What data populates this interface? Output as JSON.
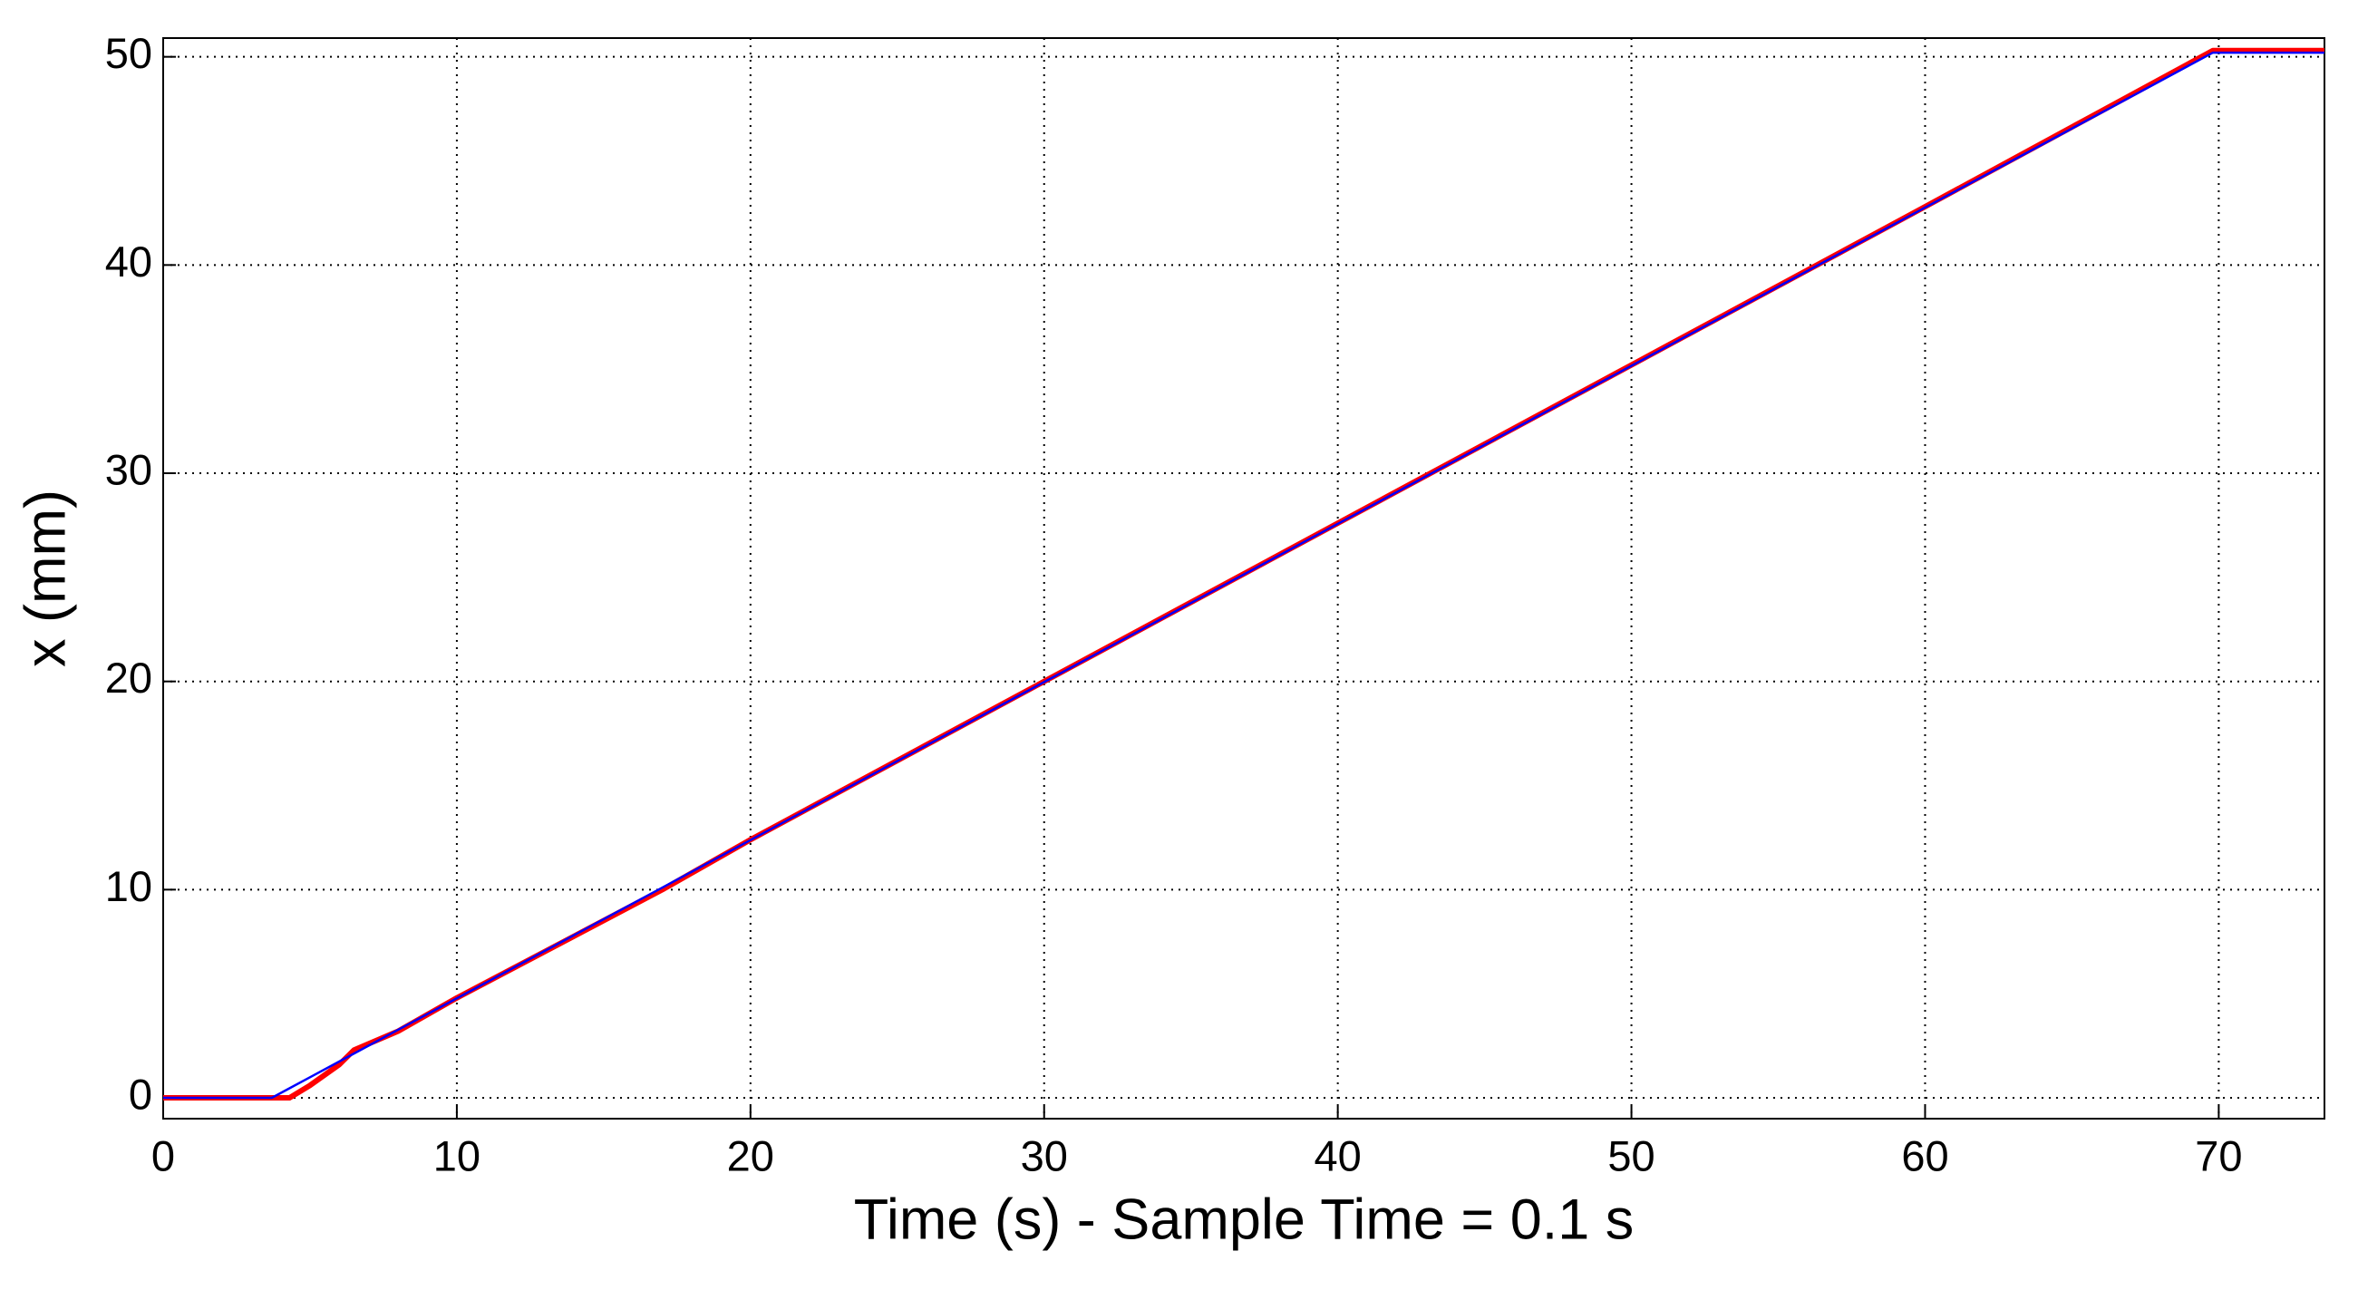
{
  "chart_data": {
    "type": "line",
    "xlabel": "Time (s) - Sample Time = 0.1 s",
    "ylabel": "x (mm)",
    "x": [
      0,
      3.7,
      4.3,
      5,
      6,
      6.5,
      8,
      10,
      17,
      18,
      20,
      30,
      40,
      50,
      60,
      69.8,
      70,
      73.6
    ],
    "series": [
      {
        "color": "#ff0000",
        "values": [
          0,
          0,
          0,
          0.6,
          1.6,
          2.3,
          3.2,
          4.8,
          10.0,
          10.8,
          12.4,
          20.0,
          27.6,
          35.2,
          42.8,
          50.3,
          50.3,
          50.3
        ]
      },
      {
        "color": "#0000ff",
        "values": [
          0,
          0,
          0.46,
          0.99,
          1.75,
          2.13,
          3.27,
          4.78,
          10.1,
          10.86,
          12.38,
          19.97,
          27.57,
          35.16,
          42.76,
          50.2,
          50.2,
          50.2
        ]
      }
    ],
    "xlim": [
      0,
      73.6
    ],
    "ylim": [
      -1,
      50.9
    ],
    "xticks": [
      0,
      10,
      20,
      30,
      40,
      50,
      60,
      70
    ],
    "yticks": [
      0,
      10,
      20,
      30,
      40,
      50
    ],
    "grid": true
  }
}
